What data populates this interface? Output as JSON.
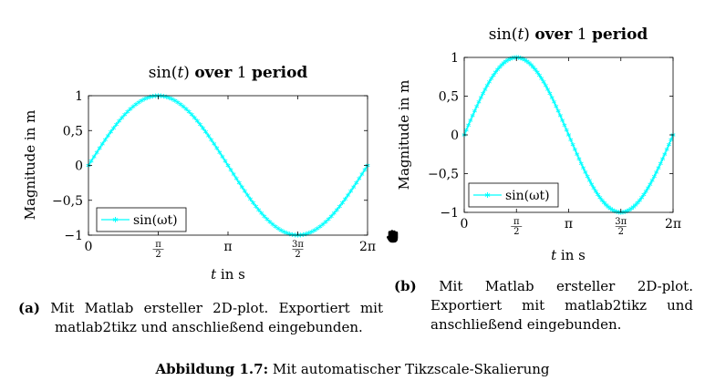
{
  "chart_data": [
    {
      "id": "a",
      "type": "line",
      "title_prefix": "sin(",
      "title_var": "t",
      "title_mid": ") ",
      "title_bold1": "over",
      "title_num": " 1 ",
      "title_bold2": "period",
      "xlabel_var": "t",
      "xlabel_rest": " in s",
      "ylabel": "Magnitude in m",
      "xlim": [
        0,
        6.2832
      ],
      "ylim": [
        -1,
        1
      ],
      "yticks": [
        -1,
        -0.5,
        0,
        0.5,
        1
      ],
      "ytick_labels": [
        "−1",
        "−0,5",
        "0",
        "0,5",
        "1"
      ],
      "xticks": [
        0,
        1.5708,
        3.1416,
        4.7124,
        6.2832
      ],
      "series": [
        {
          "name": "sin(ωt)",
          "function": "sin",
          "samples": 100,
          "color": "#00ffff",
          "marker": "asterisk"
        }
      ],
      "legend_position": "bottom-left",
      "grid": false
    },
    {
      "id": "b",
      "type": "line",
      "title_prefix": "sin(",
      "title_var": "t",
      "title_mid": ") ",
      "title_bold1": "over",
      "title_num": " 1 ",
      "title_bold2": "period",
      "xlabel_var": "t",
      "xlabel_rest": " in s",
      "ylabel": "Magnitude in m",
      "xlim": [
        0,
        6.2832
      ],
      "ylim": [
        -1,
        1
      ],
      "yticks": [
        -1,
        -0.5,
        0,
        0.5,
        1
      ],
      "ytick_labels": [
        "−1",
        "−0,5",
        "0",
        "0,5",
        "1"
      ],
      "xticks": [
        0,
        1.5708,
        3.1416,
        4.7124,
        6.2832
      ],
      "series": [
        {
          "name": "sin(ωt)",
          "function": "sin",
          "samples": 100,
          "color": "#00ffff",
          "marker": "asterisk"
        }
      ],
      "legend_position": "bottom-left",
      "grid": false
    }
  ],
  "captions": {
    "a_label": "(a)",
    "a_text": "Mit Matlab ersteller 2D-plot. Exportiert mit matlab2tikz und anschließend eingebunden.",
    "b_label": "(b)",
    "b_text": "Mit Matlab ersteller 2D-plot. Exportiert mit matlab2tikz und anschließend eingebunden.",
    "figure_label": "Abbildung 1.7:",
    "figure_text": " Mit automatischer Tikzscale-Skalierung"
  },
  "cursor": {
    "icon": "hand-grab-icon"
  }
}
